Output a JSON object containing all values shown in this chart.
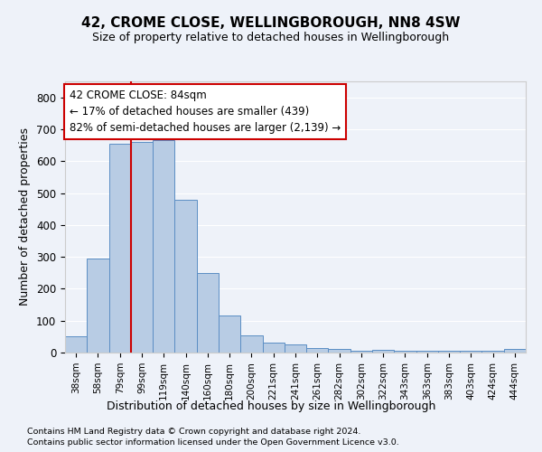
{
  "title1": "42, CROME CLOSE, WELLINGBOROUGH, NN8 4SW",
  "title2": "Size of property relative to detached houses in Wellingborough",
  "xlabel": "Distribution of detached houses by size in Wellingborough",
  "ylabel": "Number of detached properties",
  "footnote1": "Contains HM Land Registry data © Crown copyright and database right 2024.",
  "footnote2": "Contains public sector information licensed under the Open Government Licence v3.0.",
  "categories": [
    "38sqm",
    "58sqm",
    "79sqm",
    "99sqm",
    "119sqm",
    "140sqm",
    "160sqm",
    "180sqm",
    "200sqm",
    "221sqm",
    "241sqm",
    "261sqm",
    "282sqm",
    "302sqm",
    "322sqm",
    "343sqm",
    "363sqm",
    "383sqm",
    "403sqm",
    "424sqm",
    "444sqm"
  ],
  "values": [
    50,
    295,
    655,
    660,
    665,
    480,
    250,
    115,
    55,
    30,
    25,
    15,
    10,
    5,
    8,
    5,
    5,
    5,
    5,
    5,
    10
  ],
  "bar_color": "#b8cce4",
  "bar_edge_color": "#5b8ec4",
  "background_color": "#eef2f9",
  "grid_color": "#ffffff",
  "red_line_x": 2.5,
  "annotation_text": "42 CROME CLOSE: 84sqm\n← 17% of detached houses are smaller (439)\n82% of semi-detached houses are larger (2,139) →",
  "annotation_box_color": "#ffffff",
  "annotation_box_edge": "#cc0000",
  "ylim": [
    0,
    850
  ],
  "yticks": [
    0,
    100,
    200,
    300,
    400,
    500,
    600,
    700,
    800
  ]
}
